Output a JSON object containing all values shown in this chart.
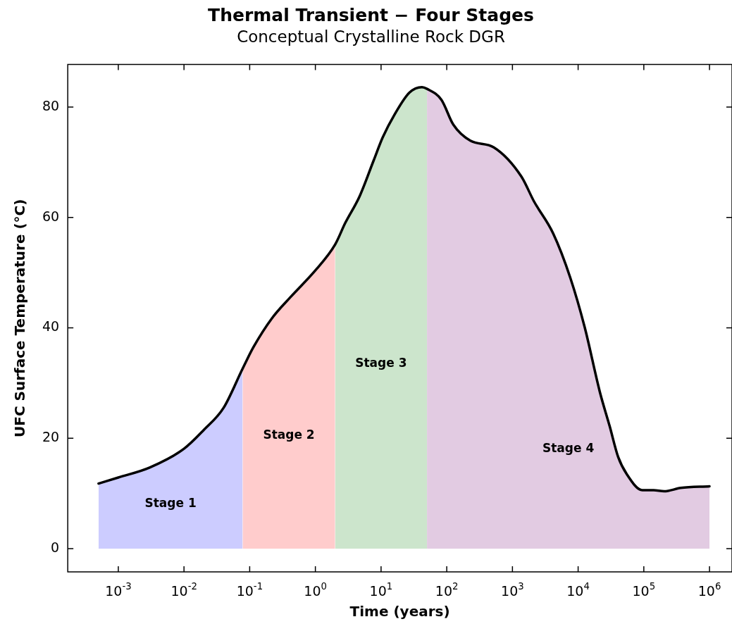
{
  "chart_data": {
    "type": "line",
    "title": "Thermal Transient − Four Stages",
    "subtitle": "Conceptual Crystalline Rock DGR",
    "xlabel": "Time (years)",
    "ylabel": "UFC Surface Temperature (°C)",
    "log": "x",
    "grid": false,
    "legend": false,
    "marker": "none",
    "line_style": "solid",
    "xlim": [
      0.00017,
      2200000
    ],
    "ylim": [
      -4.2,
      87.7
    ],
    "xticks": [
      {
        "value": 0.001,
        "label": "10$^{-3}$"
      },
      {
        "value": 0.01,
        "label": "10$^{-2}$"
      },
      {
        "value": 0.1,
        "label": "10$^{-1}$"
      },
      {
        "value": 1,
        "label": "10$^{0}$"
      },
      {
        "value": 10,
        "label": "10$^{1}$"
      },
      {
        "value": 100,
        "label": "10$^{2}$"
      },
      {
        "value": 1000,
        "label": "10$^{3}$"
      },
      {
        "value": 10000,
        "label": "10$^{4}$"
      },
      {
        "value": 100000,
        "label": "10$^{5}$"
      },
      {
        "value": 1000000,
        "label": "10$^{6}$"
      }
    ],
    "yticks": [
      0,
      20,
      40,
      60,
      80
    ],
    "series": [
      {
        "type": "area",
        "name": "Stage 1",
        "color": "#ccccff",
        "x": [
          0.0005,
          0.001,
          0.003,
          0.01,
          0.02,
          0.04,
          0.078
        ],
        "values": [
          11.8,
          12.9,
          14.7,
          18.1,
          21.5,
          25.5,
          32.6
        ]
      },
      {
        "type": "area",
        "name": "Stage 2",
        "color": "#ffcccc",
        "x": [
          0.078,
          0.114,
          0.217,
          0.42,
          1,
          2
        ],
        "values": [
          32.6,
          36.5,
          41.7,
          45.6,
          50.4,
          55.1
        ]
      },
      {
        "type": "area",
        "name": "Stage 3",
        "color": "#cce5cc",
        "x": [
          2,
          2.85,
          4.7,
          7.7,
          10.6,
          16,
          27,
          42,
          50
        ],
        "values": [
          55.1,
          59,
          63.8,
          70.3,
          74.5,
          78.6,
          82.6,
          83.6,
          83.3
        ]
      },
      {
        "type": "area",
        "name": "Stage 4",
        "color": "#e2cbe2",
        "x": [
          50,
          83,
          126,
          229,
          520,
          1370,
          2130,
          4170,
          7590,
          12600,
          21400,
          30200,
          40700,
          55000,
          95000,
          141000,
          204000,
          363000,
          1000000
        ],
        "values": [
          83.3,
          81.3,
          76.8,
          73.9,
          72.7,
          67.4,
          62.9,
          57.1,
          49.1,
          40.1,
          28.4,
          22.2,
          16.6,
          13.5,
          10.6,
          10.6,
          10.4,
          11,
          11.3
        ]
      },
      {
        "color": "#000000",
        "x": [
          0.0005,
          0.001,
          0.003,
          0.01,
          0.02,
          0.04,
          0.078,
          0.114,
          0.217,
          0.42,
          1,
          2,
          2.85,
          4.7,
          7.7,
          10.6,
          16,
          27,
          42,
          50,
          83,
          126,
          229,
          520,
          1370,
          2130,
          4170,
          7590,
          12600,
          21400,
          30200,
          40700,
          55000,
          95000,
          141000,
          204000,
          363000,
          1000000
        ],
        "values": [
          11.8,
          12.9,
          14.7,
          18.1,
          21.5,
          25.5,
          32.6,
          36.5,
          41.7,
          45.6,
          50.4,
          55.1,
          59,
          63.8,
          70.3,
          74.5,
          78.6,
          82.6,
          83.6,
          83.3,
          81.3,
          76.8,
          73.9,
          72.7,
          67.4,
          62.9,
          57.1,
          49.1,
          40.1,
          28.4,
          22.2,
          16.6,
          13.5,
          10.6,
          10.6,
          10.4,
          11,
          11.3
        ]
      }
    ]
  }
}
